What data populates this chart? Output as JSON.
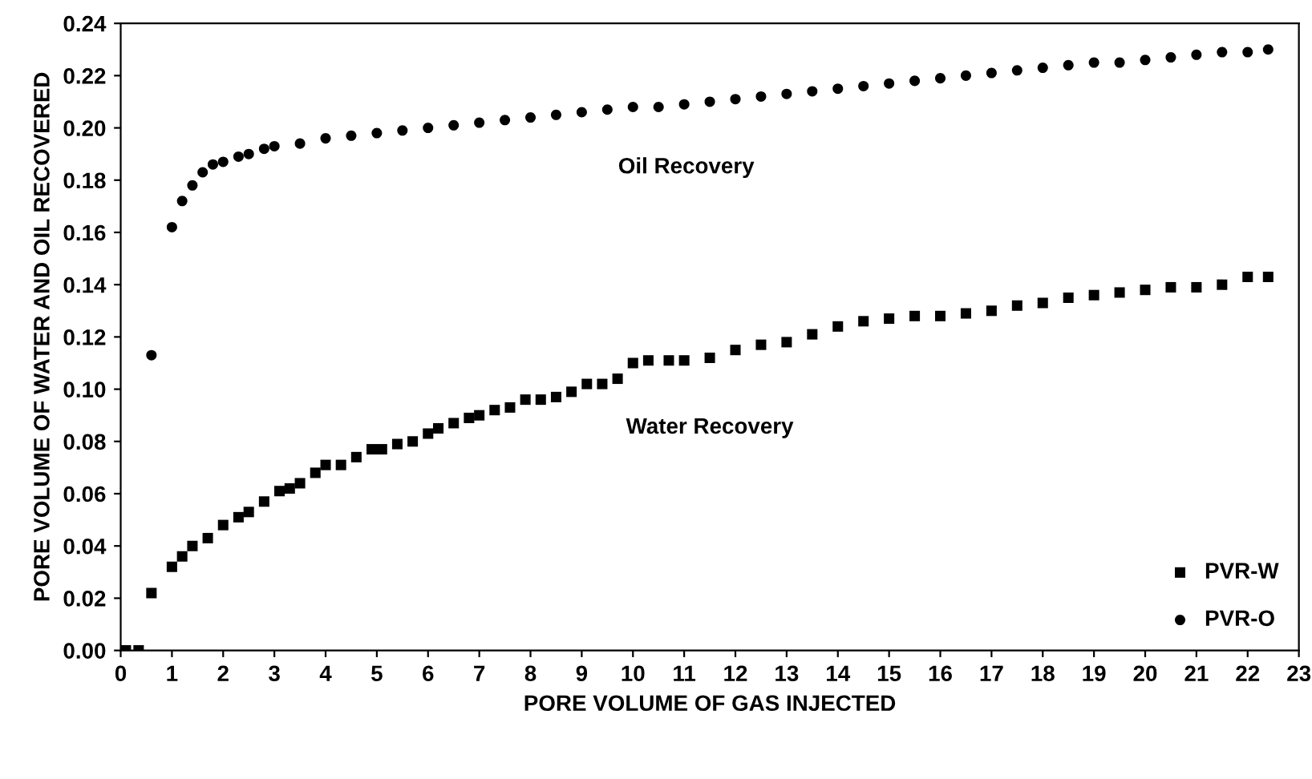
{
  "chart_data": {
    "type": "scatter",
    "xlabel": "PORE VOLUME OF GAS INJECTED",
    "ylabel": "PORE VOLUME OF WATER AND OIL RECOVERED",
    "xlim": [
      0,
      23
    ],
    "xticks": [
      0,
      1,
      2,
      3,
      4,
      5,
      6,
      7,
      8,
      9,
      10,
      11,
      12,
      13,
      14,
      15,
      16,
      17,
      18,
      19,
      20,
      21,
      22,
      23
    ],
    "ylim": [
      0,
      0.24
    ],
    "yticks": [
      {
        "value": 0,
        "label": "0.00"
      },
      {
        "value": 0.02,
        "label": "0.02"
      },
      {
        "value": 0.04,
        "label": "0.04"
      },
      {
        "value": 0.06,
        "label": "0.06"
      },
      {
        "value": 0.08,
        "label": "0.08"
      },
      {
        "value": 0.1,
        "label": "0.10"
      },
      {
        "value": 0.12,
        "label": "0.12"
      },
      {
        "value": 0.14,
        "label": "0.14"
      },
      {
        "value": 0.16,
        "label": "0.16"
      },
      {
        "value": 0.18,
        "label": "0.18"
      },
      {
        "value": 0.2,
        "label": "0.20"
      },
      {
        "value": 0.22,
        "label": "0.22"
      },
      {
        "value": 0.24,
        "label": "0.24"
      }
    ],
    "grid": false,
    "legend": "bottom right",
    "annotations": [
      "Oil Recovery",
      "Water Recovery"
    ],
    "series": [
      {
        "name": "PVR-W",
        "color": "#000000",
        "marker": "square",
        "x": [
          0.1,
          0.35,
          0.6,
          1.0,
          1.2,
          1.4,
          1.7,
          2.0,
          2.3,
          2.5,
          2.8,
          3.1,
          3.3,
          3.5,
          3.8,
          4.0,
          4.3,
          4.6,
          4.9,
          5.1,
          5.4,
          5.7,
          6.0,
          6.2,
          6.5,
          6.8,
          7.0,
          7.3,
          7.6,
          7.9,
          8.2,
          8.5,
          8.8,
          9.1,
          9.4,
          9.7,
          10.0,
          10.3,
          10.7,
          11.0,
          11.5,
          12,
          12.5,
          13,
          13.5,
          14,
          14.5,
          15,
          15.5,
          16,
          16.5,
          17,
          17.5,
          18,
          18.5,
          19,
          19.5,
          20,
          20.5,
          21,
          21.5,
          22,
          22.4
        ],
        "values": [
          0,
          0,
          0.022,
          0.032,
          0.036,
          0.04,
          0.043,
          0.048,
          0.051,
          0.053,
          0.057,
          0.061,
          0.062,
          0.064,
          0.068,
          0.071,
          0.071,
          0.074,
          0.077,
          0.077,
          0.079,
          0.08,
          0.083,
          0.085,
          0.087,
          0.089,
          0.09,
          0.092,
          0.093,
          0.096,
          0.096,
          0.097,
          0.099,
          0.102,
          0.102,
          0.104,
          0.11,
          0.111,
          0.111,
          0.111,
          0.112,
          0.115,
          0.117,
          0.118,
          0.121,
          0.124,
          0.126,
          0.127,
          0.128,
          0.128,
          0.129,
          0.13,
          0.132,
          0.133,
          0.135,
          0.136,
          0.137,
          0.138,
          0.139,
          0.139,
          0.14,
          0.143,
          0.143
        ]
      },
      {
        "name": "PVR-O",
        "color": "#000000",
        "marker": "circle",
        "x": [
          0.6,
          1.0,
          1.2,
          1.4,
          1.6,
          1.8,
          2.0,
          2.3,
          2.5,
          2.8,
          3.0,
          3.5,
          4.0,
          4.5,
          5.0,
          5.5,
          6.0,
          6.5,
          7.0,
          7.5,
          8.0,
          8.5,
          9.0,
          9.5,
          10,
          10.5,
          11,
          11.5,
          12,
          12.5,
          13,
          13.5,
          14,
          14.5,
          15,
          15.5,
          16,
          16.5,
          17,
          17.5,
          18,
          18.5,
          19,
          19.5,
          20,
          20.5,
          21,
          21.5,
          22,
          22.4
        ],
        "values": [
          0.113,
          0.162,
          0.172,
          0.178,
          0.183,
          0.186,
          0.187,
          0.189,
          0.19,
          0.192,
          0.193,
          0.194,
          0.196,
          0.197,
          0.198,
          0.199,
          0.2,
          0.201,
          0.202,
          0.203,
          0.204,
          0.205,
          0.206,
          0.207,
          0.208,
          0.208,
          0.209,
          0.21,
          0.211,
          0.212,
          0.213,
          0.214,
          0.215,
          0.216,
          0.217,
          0.218,
          0.219,
          0.22,
          0.221,
          0.222,
          0.223,
          0.224,
          0.225,
          0.225,
          0.226,
          0.227,
          0.228,
          0.229,
          0.229,
          0.23
        ]
      }
    ]
  }
}
